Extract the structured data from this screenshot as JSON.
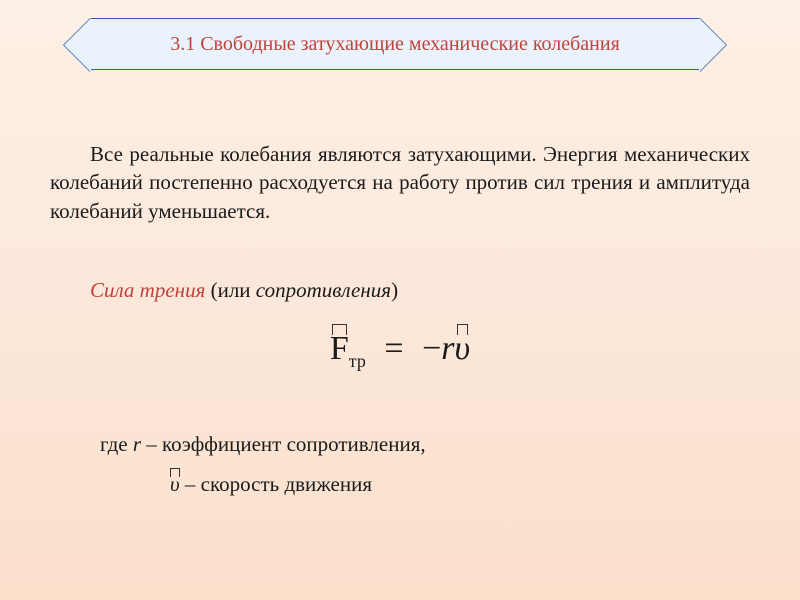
{
  "title": "3.1 Свободные затухающие механические колебания",
  "paragraph": "Все реальные колебания являются затухающими. Энергия механических колебаний постепенно расходуется на работу против сил трения и амплитуда колебаний уменьшается.",
  "subhead": {
    "red": "Сила трения",
    "open": " (или ",
    "italic": "сопротивления",
    "close": ")"
  },
  "formula": {
    "F": "F",
    "sub": "тр",
    "eq": "=",
    "minus": "−",
    "r": "r",
    "v": "υ"
  },
  "where1": {
    "prefix": "где ",
    "var": "r",
    "rest": " – коэффициент сопротивления,"
  },
  "where2": {
    "var": "υ",
    "rest": " – скорость движения"
  },
  "colors": {
    "accent": "#c0433b",
    "border": "#2a5caa",
    "banner_bg": "#eaf2fb",
    "text": "#1a1a1a"
  }
}
